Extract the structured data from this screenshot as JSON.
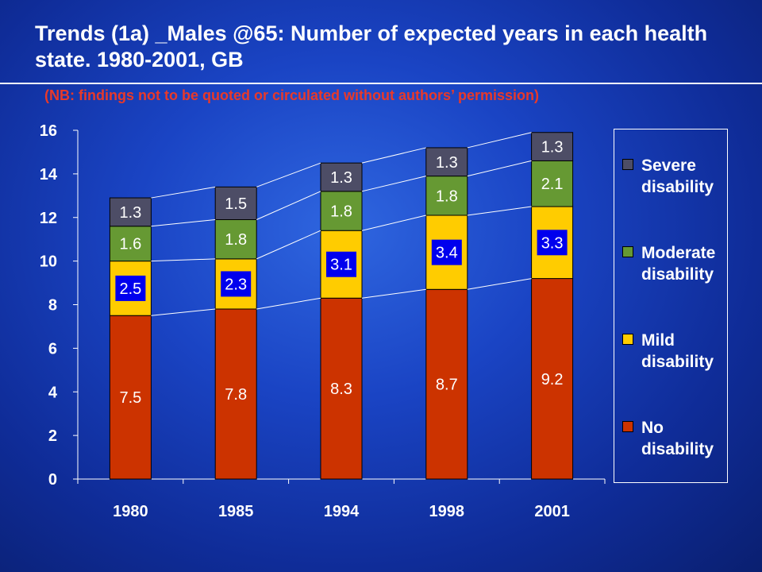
{
  "slide": {
    "title": "Trends (1a) _Males @65: Number of expected years in each health state. 1980-2001, GB",
    "subtitle": "(NB: findings not to be quoted or circulated without authors’ permission)"
  },
  "chart_data": {
    "type": "bar",
    "stacked": true,
    "categories": [
      "1980",
      "1985",
      "1994",
      "1998",
      "2001"
    ],
    "ylim": [
      0,
      16
    ],
    "yticks": [
      "0",
      "2",
      "4",
      "6",
      "8",
      "10",
      "12",
      "14",
      "16"
    ],
    "series": [
      {
        "name": "No disability",
        "color": "#cc3300",
        "values": [
          7.5,
          7.8,
          8.3,
          8.7,
          9.2
        ],
        "labels": [
          "7.5",
          "7.8",
          "8.3",
          "8.7",
          "9.2"
        ]
      },
      {
        "name": "Mild disability",
        "color": "#ffcc00",
        "values": [
          2.5,
          2.3,
          3.1,
          3.4,
          3.3
        ],
        "labels": [
          "2.5",
          "2.3",
          "3.1",
          "3.4",
          "3.3"
        ]
      },
      {
        "name": "Moderate disability",
        "color": "#669933",
        "values": [
          1.6,
          1.8,
          1.8,
          1.8,
          2.1
        ],
        "labels": [
          "1.6",
          "1.8",
          "1.8",
          "1.8",
          "2.1"
        ]
      },
      {
        "name": "Severe disability",
        "color": "#4d4d66",
        "values": [
          1.3,
          1.5,
          1.3,
          1.3,
          1.3
        ],
        "labels": [
          "1.3",
          "1.5",
          "1.3",
          "1.3",
          "1.3"
        ]
      }
    ],
    "connector_lines": true,
    "legend_position": "right",
    "legend": [
      {
        "name": "Severe disability",
        "line1": "Severe",
        "line2": "disability",
        "color": "#4d4d66"
      },
      {
        "name": "Moderate disability",
        "line1": "Moderate",
        "line2": "disability",
        "color": "#669933"
      },
      {
        "name": "Mild disability",
        "line1": "Mild",
        "line2": "disability",
        "color": "#ffcc00"
      },
      {
        "name": "No disability",
        "line1": "No",
        "line2": "disability",
        "color": "#cc3300"
      }
    ]
  }
}
